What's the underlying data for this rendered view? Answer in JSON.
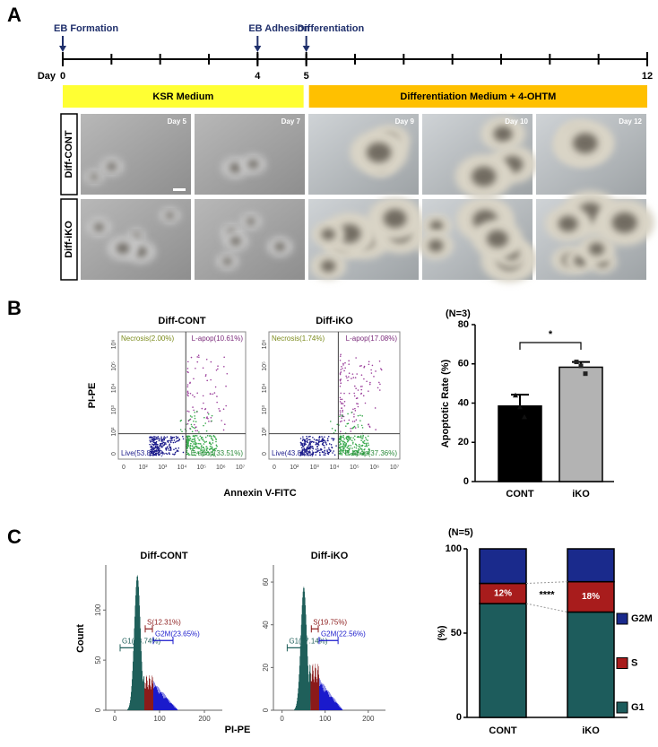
{
  "panels": [
    "A",
    "B",
    "C"
  ],
  "timeline": {
    "axis_label": "Day",
    "xlim": [
      0,
      12
    ],
    "xticks": [
      0,
      4,
      5,
      12
    ],
    "events": [
      {
        "label": "EB Formation",
        "day": 0
      },
      {
        "label": "EB Adhesion",
        "day": 4
      },
      {
        "label": "Differentiation",
        "day": 5
      }
    ],
    "media": [
      {
        "label": "KSR Medium",
        "from": 0,
        "to": 5,
        "color": "#ffff33"
      },
      {
        "label": "Differentiation Medium + 4-OHTM",
        "from": 5,
        "to": 12,
        "color": "#ffc000"
      }
    ]
  },
  "micrographs": {
    "rows": [
      "Diff-CONT",
      "Diff-iKO"
    ],
    "columns": [
      "Day 5",
      "Day 7",
      "Day 9",
      "Day 10",
      "Day 12"
    ]
  },
  "flow_cytometry": {
    "x_label": "Annexin V-FITC",
    "y_label": "PI-PE",
    "xtick_labels": [
      "0",
      "10²",
      "10³",
      "10⁴",
      "10⁵",
      "10⁶",
      "10⁷"
    ],
    "ytick_labels": [
      "0",
      "10²",
      "10³",
      "10⁴",
      "10⁵",
      "10⁶"
    ],
    "plots": [
      {
        "title": "Diff-CONT",
        "quadrants": [
          "Necrosis(2.00%)",
          "L-apop(10.61%)",
          "Live(53.89%)",
          "E-apop(33.51%)"
        ]
      },
      {
        "title": "Diff-iKO",
        "quadrants": [
          "Necrosis(1.74%)",
          "L-apop(17.08%)",
          "Live(43.85%)",
          "E-apop(37.36%)"
        ]
      }
    ]
  },
  "cell_cycle_histograms": {
    "x_label": "PI-PE",
    "y_label": "Count",
    "xlim": [
      -20,
      240
    ],
    "xticks": [
      0,
      100,
      200
    ],
    "plots": [
      {
        "title": "Diff-CONT",
        "ylim": [
          0,
          145
        ],
        "yticks": [
          0,
          50,
          100
        ],
        "gates": [
          "G1(63.74%)",
          "S(12.31%)",
          "G2M(23.65%)"
        ]
      },
      {
        "title": "Diff-iKO",
        "ylim": [
          0,
          68
        ],
        "yticks": [
          0,
          20,
          40,
          60
        ],
        "gates": [
          "G1(57.14%)",
          "S(19.75%)",
          "G2M(22.56%)"
        ]
      }
    ]
  },
  "chart_data": [
    {
      "type": "bar",
      "annotation": "(N=3)",
      "significance": "*",
      "y_label": "Apoptotic Rate (%)",
      "categories": [
        "CONT",
        "iKO"
      ],
      "values": [
        38.5,
        58.3
      ],
      "errors": [
        5.8,
        2.7
      ],
      "colors": [
        "#000000",
        "#b3b3b3"
      ],
      "points": [
        [
          44,
          38,
          33
        ],
        [
          61,
          59,
          55
        ]
      ],
      "ylim": [
        0,
        80
      ],
      "yticks": [
        0,
        20,
        40,
        60,
        80
      ]
    },
    {
      "type": "stacked_bar",
      "annotation": "(N=5)",
      "significance": "****",
      "y_label": "(%)",
      "categories": [
        "CONT",
        "iKO"
      ],
      "series": [
        {
          "name": "G1",
          "color": "#1d5c5c",
          "values": [
            67.5,
            62.5
          ]
        },
        {
          "name": "S",
          "color": "#a81c1c",
          "values": [
            12,
            18
          ],
          "value_labels": [
            "12%",
            "18%"
          ]
        },
        {
          "name": "G2M",
          "color": "#1a2a8c",
          "values": [
            20.5,
            19.5
          ]
        }
      ],
      "ylim": [
        0,
        100
      ],
      "yticks": [
        0,
        50,
        100
      ]
    }
  ]
}
